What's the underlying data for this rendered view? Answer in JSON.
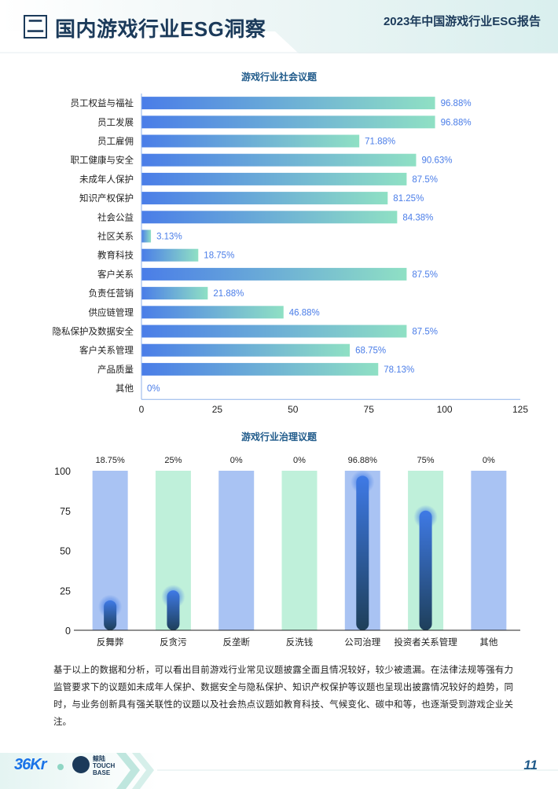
{
  "header": {
    "section_mark": "二",
    "section_title": "国内游戏行业ESG洞察",
    "report_title": "2023年中国游戏行业ESG报告"
  },
  "chart_data": [
    {
      "type": "bar",
      "orientation": "horizontal",
      "title": "游戏行业社会议题",
      "categories": [
        "员工权益与福祉",
        "员工发展",
        "员工雇佣",
        "职工健康与安全",
        "未成年人保护",
        "知识产权保护",
        "社会公益",
        "社区关系",
        "教育科技",
        "客户关系",
        "负责任营销",
        "供应链管理",
        "隐私保护及数据安全",
        "客户关系管理",
        "产品质量",
        "其他"
      ],
      "values": [
        96.88,
        96.88,
        71.88,
        90.63,
        87.5,
        81.25,
        84.38,
        3.13,
        18.75,
        87.5,
        21.88,
        46.88,
        87.5,
        68.75,
        78.13,
        0
      ],
      "labels": [
        "96.88%",
        "96.88%",
        "71.88%",
        "90.63%",
        "87.5%",
        "81.25%",
        "84.38%",
        "3.13%",
        "18.75%",
        "87.5%",
        "21.88%",
        "46.88%",
        "87.5%",
        "68.75%",
        "78.13%",
        "0%"
      ],
      "xlim": [
        0,
        125
      ],
      "xticks": [
        "0",
        "25",
        "50",
        "75",
        "100",
        "125"
      ],
      "colors": {
        "bar_start": "#4a7de8",
        "bar_end": "#8fe0c4",
        "label": "#4a7de8"
      }
    },
    {
      "type": "bar",
      "orientation": "vertical",
      "title": "游戏行业治理议题",
      "categories": [
        "反舞弊",
        "反贪污",
        "反垄断",
        "反洗钱",
        "公司治理",
        "投资者关系管理",
        "其他"
      ],
      "values": [
        18.75,
        25,
        0,
        0,
        96.88,
        75,
        0
      ],
      "labels": [
        "18.75%",
        "25%",
        "0%",
        "0%",
        "96.88%",
        "75%",
        "0%"
      ],
      "ylim": [
        0,
        100
      ],
      "yticks": [
        "100",
        "75",
        "50",
        "25",
        "0"
      ],
      "colors": {
        "column_blue": "#a9c3f3",
        "column_green": "#bff0da",
        "bar_top": "#3f7ae6",
        "bar_bottom": "#1e3f5a"
      }
    }
  ],
  "paragraph": "基于以上的数据和分析，可以看出目前游戏行业常见议题披露全面且情况较好，较少被遗漏。在法律法规等强有力监管要求下的议题如未成年人保护、数据安全与隐私保护、知识产权保护等议题也呈现出披露情况较好的趋势，同时，与业务创新具有强关联性的议题以及社会热点议题如教育科技、气候变化、碳中和等，也逐渐受到游戏企业关注。",
  "footer": {
    "logo_36kr": "36Kr",
    "logo_touch_line1": "鲸陆",
    "logo_touch_line2": "TOUCH",
    "logo_touch_line3": "BASE",
    "page_number": "11"
  }
}
